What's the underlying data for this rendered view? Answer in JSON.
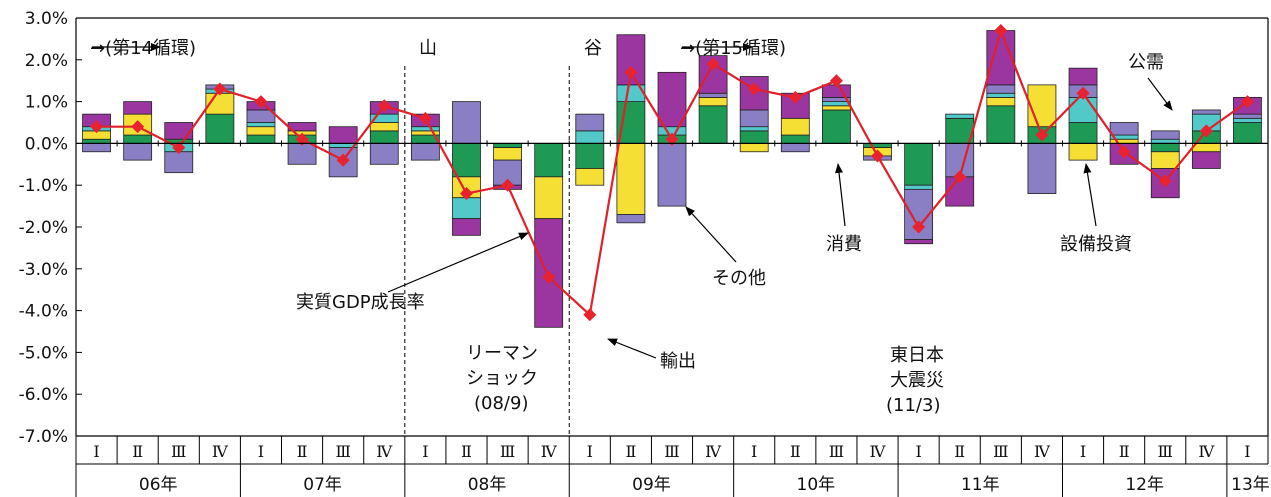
{
  "chart_data": {
    "type": "bar",
    "stacked": true,
    "ylim": [
      -7.0,
      3.0
    ],
    "y_ticks": [
      "3.0%",
      "2.0%",
      "1.0%",
      "0.0%",
      "-1.0%",
      "-2.0%",
      "-3.0%",
      "-4.0%",
      "-5.0%",
      "-6.0%",
      "-7.0%"
    ],
    "y_tick_values": [
      3,
      2,
      1,
      0,
      -1,
      -2,
      -3,
      -4,
      -5,
      -6,
      -7
    ],
    "quarter_labels": [
      "Ⅰ",
      "Ⅱ",
      "Ⅲ",
      "Ⅳ",
      "Ⅰ",
      "Ⅱ",
      "Ⅲ",
      "Ⅳ",
      "Ⅰ",
      "Ⅱ",
      "Ⅲ",
      "Ⅳ",
      "Ⅰ",
      "Ⅱ",
      "Ⅲ",
      "Ⅳ",
      "Ⅰ",
      "Ⅱ",
      "Ⅲ",
      "Ⅳ",
      "Ⅰ",
      "Ⅱ",
      "Ⅲ",
      "Ⅳ",
      "Ⅰ",
      "Ⅱ",
      "Ⅲ",
      "Ⅳ",
      "Ⅰ"
    ],
    "year_labels": [
      {
        "label": "06年",
        "start": 0,
        "count": 4
      },
      {
        "label": "07年",
        "start": 4,
        "count": 4
      },
      {
        "label": "08年",
        "start": 8,
        "count": 4
      },
      {
        "label": "09年",
        "start": 12,
        "count": 4
      },
      {
        "label": "10年",
        "start": 16,
        "count": 4
      },
      {
        "label": "11年",
        "start": 20,
        "count": 4
      },
      {
        "label": "12年",
        "start": 24,
        "count": 4
      },
      {
        "label": "13年",
        "start": 28,
        "count": 1
      }
    ],
    "colors": {
      "consumption": "#1f9a55",
      "investment": "#f6df35",
      "public": "#52c8c8",
      "other": "#8a7fc4",
      "exports": "#9b35a0",
      "gdp": "#e8222f"
    },
    "series_order": [
      "consumption",
      "investment",
      "public",
      "other",
      "exports"
    ],
    "series": [
      {
        "key": "consumption",
        "values": [
          0.1,
          0.2,
          0.1,
          0.7,
          0.2,
          0.2,
          0.0,
          0.3,
          0.2,
          -0.8,
          -0.1,
          -0.8,
          -0.6,
          1.0,
          0.2,
          0.9,
          0.3,
          0.2,
          0.8,
          -0.1,
          -1.0,
          0.6,
          0.9,
          0.4,
          0.5,
          0.0,
          -0.2,
          0.3,
          0.5
        ]
      },
      {
        "key": "investment",
        "values": [
          0.2,
          0.5,
          0.0,
          0.5,
          0.2,
          0.1,
          0.0,
          0.2,
          0.1,
          -0.5,
          -0.3,
          -1.0,
          -0.4,
          -1.7,
          0.0,
          0.2,
          -0.2,
          0.4,
          0.1,
          -0.2,
          0.0,
          0.0,
          0.2,
          1.0,
          -0.4,
          0.1,
          -0.4,
          -0.2,
          0.0
        ]
      },
      {
        "key": "public",
        "values": [
          0.1,
          0.0,
          -0.2,
          0.1,
          0.1,
          0.0,
          -0.1,
          0.2,
          0.1,
          -0.5,
          0.0,
          0.0,
          0.3,
          0.4,
          0.2,
          0.0,
          0.1,
          0.0,
          0.1,
          0.0,
          -0.1,
          0.1,
          0.1,
          0.0,
          0.6,
          0.1,
          0.1,
          0.4,
          0.1
        ]
      },
      {
        "key": "other",
        "values": [
          -0.2,
          -0.4,
          -0.5,
          0.1,
          0.3,
          -0.5,
          -0.7,
          -0.5,
          -0.4,
          1.0,
          -0.6,
          0.0,
          0.4,
          -0.2,
          -1.5,
          0.1,
          0.4,
          -0.2,
          0.1,
          -0.1,
          -1.2,
          -0.8,
          0.2,
          -1.2,
          0.3,
          0.3,
          0.2,
          0.1,
          0.1
        ]
      },
      {
        "key": "exports",
        "values": [
          0.3,
          0.3,
          0.4,
          0.0,
          0.2,
          0.2,
          0.4,
          0.3,
          0.3,
          -0.4,
          -0.1,
          -2.6,
          0.0,
          1.2,
          1.3,
          0.9,
          0.8,
          0.6,
          0.3,
          0.0,
          -0.1,
          -0.7,
          1.3,
          0.0,
          0.4,
          -0.5,
          -0.7,
          -0.4,
          0.4
        ]
      }
    ],
    "gdp_values": [
      0.4,
      0.4,
      -0.1,
      1.3,
      1.0,
      0.1,
      -0.4,
      0.9,
      0.6,
      -1.2,
      -1.0,
      -3.2,
      -4.1,
      1.7,
      0.1,
      1.9,
      1.3,
      1.1,
      1.5,
      -0.3,
      -2.0,
      -0.8,
      2.7,
      0.2,
      1.2,
      -0.2,
      -0.9,
      0.3,
      1.0
    ],
    "annotations": {
      "cycle14": "→(第14循環)",
      "cycle15": "→(第15循環)",
      "peak": "山",
      "trough": "谷",
      "gdp_label": "実質GDP成長率",
      "lehman_1": "リーマン",
      "lehman_2": "ショック",
      "lehman_3": "(08/9)",
      "exports_label": "輸出",
      "other_label": "その他",
      "consumption_label": "消費",
      "quake_1": "東日本",
      "quake_2": "大震災",
      "quake_3": "(11/3)",
      "investment_label": "設備投資",
      "public_label": "公需"
    }
  }
}
